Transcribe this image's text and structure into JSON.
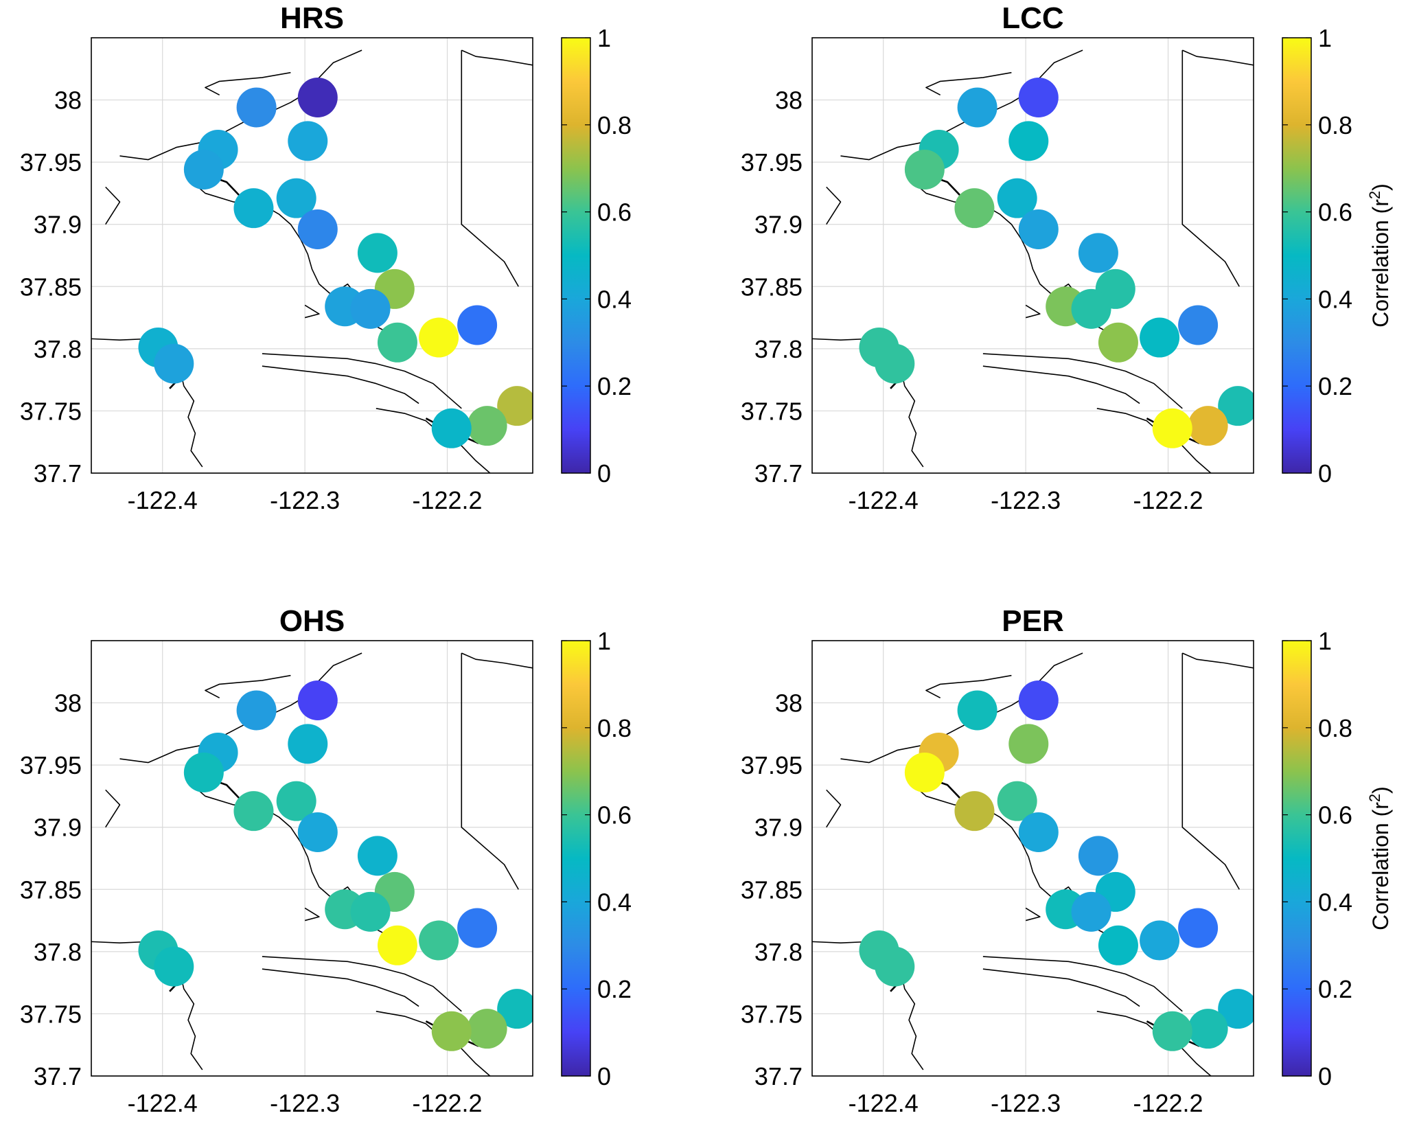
{
  "colorbar": {
    "ticks": [
      0,
      0.2,
      0.4,
      0.6,
      0.8,
      1
    ],
    "tick_labels": [
      "0",
      "0.2",
      "0.4",
      "0.6",
      "0.8",
      "1"
    ],
    "label": "Correlation (r",
    "label_sup": "2",
    "label_end": ")",
    "colormap": "parula"
  },
  "chart_data": [
    {
      "type": "scatter",
      "title": "HRS",
      "xlim": [
        -122.45,
        -122.14
      ],
      "ylim": [
        37.7,
        38.05
      ],
      "x_ticks": [
        -122.4,
        -122.3,
        -122.2
      ],
      "x_tick_labels": [
        "-122.4",
        "-122.3",
        "-122.2"
      ],
      "y_ticks": [
        37.7,
        37.75,
        37.8,
        37.85,
        37.9,
        37.95,
        38
      ],
      "y_tick_labels": [
        "37.7",
        "37.75",
        "37.8",
        "37.85",
        "37.9",
        "37.95",
        "38"
      ],
      "grid": true,
      "colorbar_label": false,
      "points": [
        {
          "lon": -122.291,
          "lat": 38.002,
          "r2": 0.02
        },
        {
          "lon": -122.334,
          "lat": 37.994,
          "r2": 0.3
        },
        {
          "lon": -122.298,
          "lat": 37.967,
          "r2": 0.4
        },
        {
          "lon": -122.361,
          "lat": 37.96,
          "r2": 0.4
        },
        {
          "lon": -122.371,
          "lat": 37.944,
          "r2": 0.38
        },
        {
          "lon": -122.306,
          "lat": 37.921,
          "r2": 0.42
        },
        {
          "lon": -122.336,
          "lat": 37.913,
          "r2": 0.45
        },
        {
          "lon": -122.291,
          "lat": 37.896,
          "r2": 0.28
        },
        {
          "lon": -122.249,
          "lat": 37.877,
          "r2": 0.52
        },
        {
          "lon": -122.237,
          "lat": 37.848,
          "r2": 0.7
        },
        {
          "lon": -122.272,
          "lat": 37.834,
          "r2": 0.38
        },
        {
          "lon": -122.254,
          "lat": 37.832,
          "r2": 0.36
        },
        {
          "lon": -122.179,
          "lat": 37.819,
          "r2": 0.22
        },
        {
          "lon": -122.206,
          "lat": 37.809,
          "r2": 1.0
        },
        {
          "lon": -122.235,
          "lat": 37.805,
          "r2": 0.6
        },
        {
          "lon": -122.403,
          "lat": 37.801,
          "r2": 0.45
        },
        {
          "lon": -122.392,
          "lat": 37.788,
          "r2": 0.38
        },
        {
          "lon": -122.151,
          "lat": 37.754,
          "r2": 0.75
        },
        {
          "lon": -122.172,
          "lat": 37.738,
          "r2": 0.66
        },
        {
          "lon": -122.197,
          "lat": 37.736,
          "r2": 0.48
        }
      ]
    },
    {
      "type": "scatter",
      "title": "LCC",
      "xlim": [
        -122.45,
        -122.14
      ],
      "ylim": [
        37.7,
        38.05
      ],
      "x_ticks": [
        -122.4,
        -122.3,
        -122.2
      ],
      "x_tick_labels": [
        "-122.4",
        "-122.3",
        "-122.2"
      ],
      "y_ticks": [
        37.7,
        37.75,
        37.8,
        37.85,
        37.9,
        37.95,
        38
      ],
      "y_tick_labels": [
        "37.7",
        "37.75",
        "37.8",
        "37.85",
        "37.9",
        "37.95",
        "38"
      ],
      "grid": true,
      "colorbar_label": true,
      "points": [
        {
          "lon": -122.291,
          "lat": 38.002,
          "r2": 0.12
        },
        {
          "lon": -122.334,
          "lat": 37.994,
          "r2": 0.38
        },
        {
          "lon": -122.298,
          "lat": 37.967,
          "r2": 0.5
        },
        {
          "lon": -122.361,
          "lat": 37.96,
          "r2": 0.54
        },
        {
          "lon": -122.371,
          "lat": 37.944,
          "r2": 0.62
        },
        {
          "lon": -122.306,
          "lat": 37.921,
          "r2": 0.46
        },
        {
          "lon": -122.336,
          "lat": 37.913,
          "r2": 0.65
        },
        {
          "lon": -122.291,
          "lat": 37.896,
          "r2": 0.38
        },
        {
          "lon": -122.249,
          "lat": 37.877,
          "r2": 0.38
        },
        {
          "lon": -122.237,
          "lat": 37.848,
          "r2": 0.56
        },
        {
          "lon": -122.272,
          "lat": 37.834,
          "r2": 0.68
        },
        {
          "lon": -122.254,
          "lat": 37.832,
          "r2": 0.56
        },
        {
          "lon": -122.179,
          "lat": 37.819,
          "r2": 0.28
        },
        {
          "lon": -122.206,
          "lat": 37.809,
          "r2": 0.5
        },
        {
          "lon": -122.235,
          "lat": 37.805,
          "r2": 0.7
        },
        {
          "lon": -122.403,
          "lat": 37.801,
          "r2": 0.58
        },
        {
          "lon": -122.392,
          "lat": 37.788,
          "r2": 0.58
        },
        {
          "lon": -122.151,
          "lat": 37.754,
          "r2": 0.54
        },
        {
          "lon": -122.172,
          "lat": 37.738,
          "r2": 0.82
        },
        {
          "lon": -122.197,
          "lat": 37.736,
          "r2": 1.0
        }
      ]
    },
    {
      "type": "scatter",
      "title": "OHS",
      "xlim": [
        -122.45,
        -122.14
      ],
      "ylim": [
        37.7,
        38.05
      ],
      "x_ticks": [
        -122.4,
        -122.3,
        -122.2
      ],
      "x_tick_labels": [
        "-122.4",
        "-122.3",
        "-122.2"
      ],
      "y_ticks": [
        37.7,
        37.75,
        37.8,
        37.85,
        37.9,
        37.95,
        38
      ],
      "y_tick_labels": [
        "37.7",
        "37.75",
        "37.8",
        "37.85",
        "37.9",
        "37.95",
        "38"
      ],
      "grid": true,
      "colorbar_label": false,
      "points": [
        {
          "lon": -122.291,
          "lat": 38.002,
          "r2": 0.1
        },
        {
          "lon": -122.334,
          "lat": 37.994,
          "r2": 0.36
        },
        {
          "lon": -122.298,
          "lat": 37.967,
          "r2": 0.46
        },
        {
          "lon": -122.361,
          "lat": 37.96,
          "r2": 0.42
        },
        {
          "lon": -122.371,
          "lat": 37.944,
          "r2": 0.52
        },
        {
          "lon": -122.306,
          "lat": 37.921,
          "r2": 0.56
        },
        {
          "lon": -122.336,
          "lat": 37.913,
          "r2": 0.58
        },
        {
          "lon": -122.291,
          "lat": 37.896,
          "r2": 0.4
        },
        {
          "lon": -122.249,
          "lat": 37.877,
          "r2": 0.46
        },
        {
          "lon": -122.237,
          "lat": 37.848,
          "r2": 0.64
        },
        {
          "lon": -122.272,
          "lat": 37.834,
          "r2": 0.58
        },
        {
          "lon": -122.254,
          "lat": 37.832,
          "r2": 0.56
        },
        {
          "lon": -122.179,
          "lat": 37.819,
          "r2": 0.24
        },
        {
          "lon": -122.206,
          "lat": 37.809,
          "r2": 0.6
        },
        {
          "lon": -122.235,
          "lat": 37.805,
          "r2": 1.0
        },
        {
          "lon": -122.403,
          "lat": 37.801,
          "r2": 0.54
        },
        {
          "lon": -122.392,
          "lat": 37.788,
          "r2": 0.52
        },
        {
          "lon": -122.151,
          "lat": 37.754,
          "r2": 0.52
        },
        {
          "lon": -122.172,
          "lat": 37.738,
          "r2": 0.68
        },
        {
          "lon": -122.197,
          "lat": 37.736,
          "r2": 0.7
        }
      ]
    },
    {
      "type": "scatter",
      "title": "PER",
      "xlim": [
        -122.45,
        -122.14
      ],
      "ylim": [
        37.7,
        38.05
      ],
      "x_ticks": [
        -122.4,
        -122.3,
        -122.2
      ],
      "x_tick_labels": [
        "-122.4",
        "-122.3",
        "-122.2"
      ],
      "y_ticks": [
        37.7,
        37.75,
        37.8,
        37.85,
        37.9,
        37.95,
        38
      ],
      "y_tick_labels": [
        "37.7",
        "37.75",
        "37.8",
        "37.85",
        "37.9",
        "37.95",
        "38"
      ],
      "grid": true,
      "colorbar_label": true,
      "points": [
        {
          "lon": -122.291,
          "lat": 38.002,
          "r2": 0.12
        },
        {
          "lon": -122.334,
          "lat": 37.994,
          "r2": 0.52
        },
        {
          "lon": -122.298,
          "lat": 37.967,
          "r2": 0.68
        },
        {
          "lon": -122.361,
          "lat": 37.96,
          "r2": 0.84
        },
        {
          "lon": -122.371,
          "lat": 37.944,
          "r2": 1.0
        },
        {
          "lon": -122.306,
          "lat": 37.921,
          "r2": 0.6
        },
        {
          "lon": -122.336,
          "lat": 37.913,
          "r2": 0.76
        },
        {
          "lon": -122.291,
          "lat": 37.896,
          "r2": 0.4
        },
        {
          "lon": -122.249,
          "lat": 37.877,
          "r2": 0.34
        },
        {
          "lon": -122.237,
          "lat": 37.848,
          "r2": 0.48
        },
        {
          "lon": -122.272,
          "lat": 37.834,
          "r2": 0.52
        },
        {
          "lon": -122.254,
          "lat": 37.832,
          "r2": 0.38
        },
        {
          "lon": -122.179,
          "lat": 37.819,
          "r2": 0.22
        },
        {
          "lon": -122.206,
          "lat": 37.809,
          "r2": 0.4
        },
        {
          "lon": -122.235,
          "lat": 37.805,
          "r2": 0.5
        },
        {
          "lon": -122.403,
          "lat": 37.801,
          "r2": 0.58
        },
        {
          "lon": -122.392,
          "lat": 37.788,
          "r2": 0.58
        },
        {
          "lon": -122.151,
          "lat": 37.754,
          "r2": 0.46
        },
        {
          "lon": -122.172,
          "lat": 37.738,
          "r2": 0.54
        },
        {
          "lon": -122.197,
          "lat": 37.736,
          "r2": 0.58
        }
      ]
    }
  ]
}
